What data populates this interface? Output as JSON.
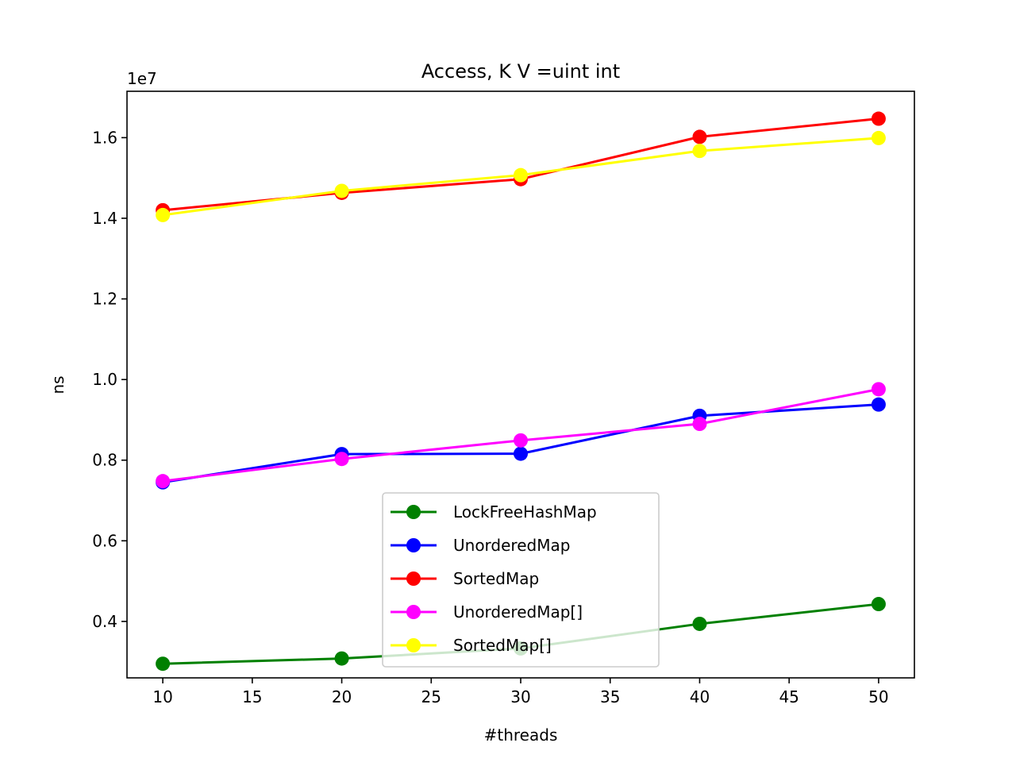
{
  "chart_data": {
    "type": "line",
    "title": "Access, K V =uint int",
    "xlabel": "#threads",
    "ylabel": "ns",
    "y_offset_label": "1e7",
    "x": [
      10,
      20,
      30,
      40,
      50
    ],
    "xlim": [
      8,
      52
    ],
    "ylim": [
      0.26,
      1.715
    ],
    "x_ticks": [
      10,
      15,
      20,
      25,
      30,
      35,
      40,
      45,
      50
    ],
    "x_tick_labels": [
      "10",
      "15",
      "20",
      "25",
      "30",
      "35",
      "40",
      "45",
      "50"
    ],
    "y_ticks": [
      0.4,
      0.6,
      0.8,
      1.0,
      1.2,
      1.4,
      1.6
    ],
    "y_tick_labels": [
      "0.4",
      "0.6",
      "0.8",
      "1.0",
      "1.2",
      "1.4",
      "1.6"
    ],
    "grid": false,
    "legend_position": "lower-center",
    "series": [
      {
        "name": "LockFreeHashMap",
        "color": "#008000",
        "values": [
          0.295,
          0.308,
          0.333,
          0.394,
          0.443
        ]
      },
      {
        "name": "UnorderedMap",
        "color": "#0000ff",
        "values": [
          0.745,
          0.815,
          0.816,
          0.91,
          0.938
        ]
      },
      {
        "name": "SortedMap",
        "color": "#ff0000",
        "values": [
          1.42,
          1.463,
          1.497,
          1.602,
          1.647
        ]
      },
      {
        "name": "UnorderedMap[]",
        "color": "#ff00ff",
        "values": [
          0.748,
          0.803,
          0.849,
          0.89,
          0.976
        ]
      },
      {
        "name": "SortedMap[]",
        "color": "#ffff00",
        "values": [
          1.408,
          1.468,
          1.507,
          1.567,
          1.599
        ]
      }
    ]
  }
}
